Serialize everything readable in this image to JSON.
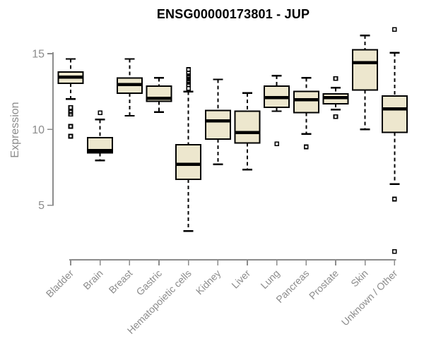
{
  "page": {
    "background": "#FFFFFF"
  },
  "chart_data": {
    "type": "boxplot",
    "title": "ENSG00000173801 - JUP",
    "ylabel": "Expression",
    "xlabel": "",
    "grid": false,
    "legend": false,
    "y_axis": {
      "ticks": [
        15,
        10,
        5
      ],
      "shown_range": [
        5,
        15
      ]
    },
    "ylim": [
      1.9,
      16.7
    ],
    "categories": [
      "Bladder",
      "Brain",
      "Breast",
      "Gastric",
      "Hematopoietic cells",
      "Kidney",
      "Liver",
      "Lung",
      "Pancreas",
      "Prostate",
      "Skin",
      "Unknown / Other"
    ],
    "series": [
      {
        "category": "Bladder",
        "whisker_low": 12.0,
        "q1": 13.05,
        "median": 13.45,
        "q3": 13.8,
        "whisker_high": 14.65,
        "outliers": [
          11.45,
          11.15,
          11.0,
          10.2,
          9.55
        ]
      },
      {
        "category": "Brain",
        "whisker_low": 7.95,
        "q1": 8.45,
        "median": 8.6,
        "q3": 9.45,
        "whisker_high": 10.65,
        "outliers": [
          11.1
        ]
      },
      {
        "category": "Breast",
        "whisker_low": 10.9,
        "q1": 12.4,
        "median": 12.95,
        "q3": 13.4,
        "whisker_high": 14.65,
        "outliers": []
      },
      {
        "category": "Gastric",
        "whisker_low": 11.15,
        "q1": 11.85,
        "median": 12.05,
        "q3": 12.85,
        "whisker_high": 13.4,
        "outliers": []
      },
      {
        "category": "Hematopoietic cells",
        "whisker_low": 3.3,
        "q1": 6.7,
        "median": 7.7,
        "q3": 9.0,
        "whisker_high": 12.5,
        "outliers": [
          13.95,
          13.7,
          13.55,
          13.4,
          13.25,
          13.1,
          12.95,
          12.7
        ]
      },
      {
        "category": "Kidney",
        "whisker_low": 7.7,
        "q1": 9.35,
        "median": 10.55,
        "q3": 11.25,
        "whisker_high": 13.3,
        "outliers": []
      },
      {
        "category": "Liver",
        "whisker_low": 7.35,
        "q1": 9.1,
        "median": 9.8,
        "q3": 11.2,
        "whisker_high": 12.4,
        "outliers": []
      },
      {
        "category": "Lung",
        "whisker_low": 11.2,
        "q1": 11.45,
        "median": 12.1,
        "q3": 12.85,
        "whisker_high": 13.55,
        "outliers": [
          9.05
        ]
      },
      {
        "category": "Pancreas",
        "whisker_low": 9.7,
        "q1": 11.1,
        "median": 11.95,
        "q3": 12.5,
        "whisker_high": 13.4,
        "outliers": [
          8.85
        ]
      },
      {
        "category": "Prostate",
        "whisker_low": 11.3,
        "q1": 11.7,
        "median": 12.1,
        "q3": 12.35,
        "whisker_high": 12.75,
        "outliers": [
          13.35,
          10.85
        ]
      },
      {
        "category": "Skin",
        "whisker_low": 10.0,
        "q1": 12.6,
        "median": 14.4,
        "q3": 15.25,
        "whisker_high": 16.2,
        "outliers": []
      },
      {
        "category": "Unknown / Other",
        "whisker_low": 6.4,
        "q1": 9.8,
        "median": 11.35,
        "q3": 12.2,
        "whisker_high": 15.05,
        "outliers": [
          16.6,
          5.4,
          1.95
        ]
      }
    ],
    "colors": {
      "box_fill": "#EDE7CE",
      "box_border": "#000000",
      "median": "#000000",
      "whisker": "#000000",
      "outlier_border": "#000000",
      "axis": "#8C8C8C",
      "tick_label": "#8C8C8C",
      "title": "#000000"
    }
  }
}
